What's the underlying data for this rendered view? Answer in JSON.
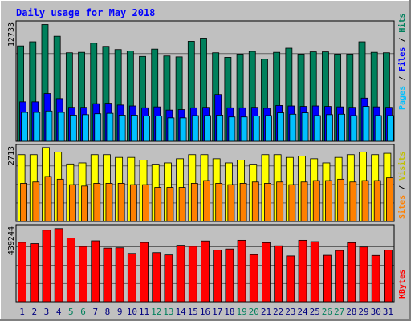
{
  "chart_data": {
    "type": "bar",
    "title": "Daily usage for May 2018",
    "categories": [
      "1",
      "2",
      "3",
      "4",
      "5",
      "6",
      "7",
      "8",
      "9",
      "10",
      "11",
      "12",
      "13",
      "14",
      "15",
      "16",
      "17",
      "18",
      "19",
      "20",
      "21",
      "22",
      "23",
      "24",
      "25",
      "26",
      "27",
      "28",
      "29",
      "30",
      "31"
    ],
    "weekend_days": [
      "5",
      "6",
      "12",
      "13",
      "19",
      "20",
      "26",
      "27"
    ],
    "panels": [
      {
        "name": "hits-files-pages",
        "max_label": "12733",
        "ymax": 12733,
        "series": [
          {
            "name": "Hits",
            "color": "#00805c",
            "values": [
              10400,
              10850,
              12733,
              11450,
              9650,
              9700,
              10700,
              10350,
              10000,
              9850,
              9250,
              10050,
              9300,
              9200,
              10900,
              11250,
              9650,
              9150,
              9500,
              9800,
              8950,
              9700,
              10150,
              9500,
              9750,
              9750,
              9500,
              9500,
              10850,
              9700,
              9650
            ]
          },
          {
            "name": "Files",
            "color": "#0000ff",
            "values": [
              4300,
              4300,
              5200,
              4650,
              3700,
              3700,
              4100,
              4150,
              3950,
              3850,
              3650,
              3750,
              3400,
              3450,
              3650,
              3700,
              5100,
              3650,
              3650,
              3700,
              3600,
              3900,
              3850,
              3800,
              3850,
              3800,
              3750,
              3700,
              4700,
              3750,
              3700
            ]
          },
          {
            "name": "Pages",
            "color": "#00c0ff",
            "values": [
              3150,
              3150,
              3300,
              3150,
              2850,
              2900,
              3000,
              3050,
              2850,
              2850,
              2750,
              2750,
              2550,
              2550,
              2800,
              2800,
              2850,
              2650,
              2650,
              2750,
              2800,
              3100,
              2950,
              3100,
              2800,
              2900,
              2950,
              2800,
              3800,
              2800,
              2800
            ]
          }
        ]
      },
      {
        "name": "visits-sites",
        "max_label": "2713",
        "ymax": 2713,
        "series": [
          {
            "name": "Visits",
            "color": "#ffff00",
            "values": [
              2450,
              2450,
              2713,
              2550,
              2110,
              2150,
              2450,
              2450,
              2350,
              2350,
              2250,
              2100,
              2150,
              2300,
              2450,
              2450,
              2300,
              2150,
              2250,
              2100,
              2450,
              2450,
              2350,
              2400,
              2300,
              2150,
              2350,
              2450,
              2550,
              2450,
              2500
            ]
          },
          {
            "name": "Sites",
            "color": "#ff8000",
            "values": [
              1400,
              1450,
              1650,
              1550,
              1350,
              1300,
              1400,
              1400,
              1400,
              1350,
              1350,
              1250,
              1250,
              1250,
              1400,
              1500,
              1400,
              1350,
              1400,
              1450,
              1400,
              1450,
              1350,
              1450,
              1500,
              1500,
              1550,
              1450,
              1500,
              1500,
              1600
            ]
          }
        ]
      },
      {
        "name": "kbytes",
        "max_label": "439244",
        "ymax": 439244,
        "series": [
          {
            "name": "KBytes",
            "color": "#ff0000",
            "values": [
              357000,
              349000,
              430000,
              439244,
              383000,
              332000,
              366000,
              322000,
              324000,
              290000,
              356000,
              295000,
              281000,
              339000,
              333000,
              365000,
              310000,
              317000,
              369000,
              283000,
              355000,
              336000,
              275000,
              369000,
              361000,
              279000,
              308000,
              355000,
              329000,
              278000,
              310000
            ]
          }
        ]
      }
    ]
  },
  "colors": {
    "background": "#c0c0c0",
    "title": "#0000ff",
    "weekday_label": "#000080",
    "weekend_label": "#00805c",
    "slash": "#000000",
    "grid": "#000000"
  }
}
